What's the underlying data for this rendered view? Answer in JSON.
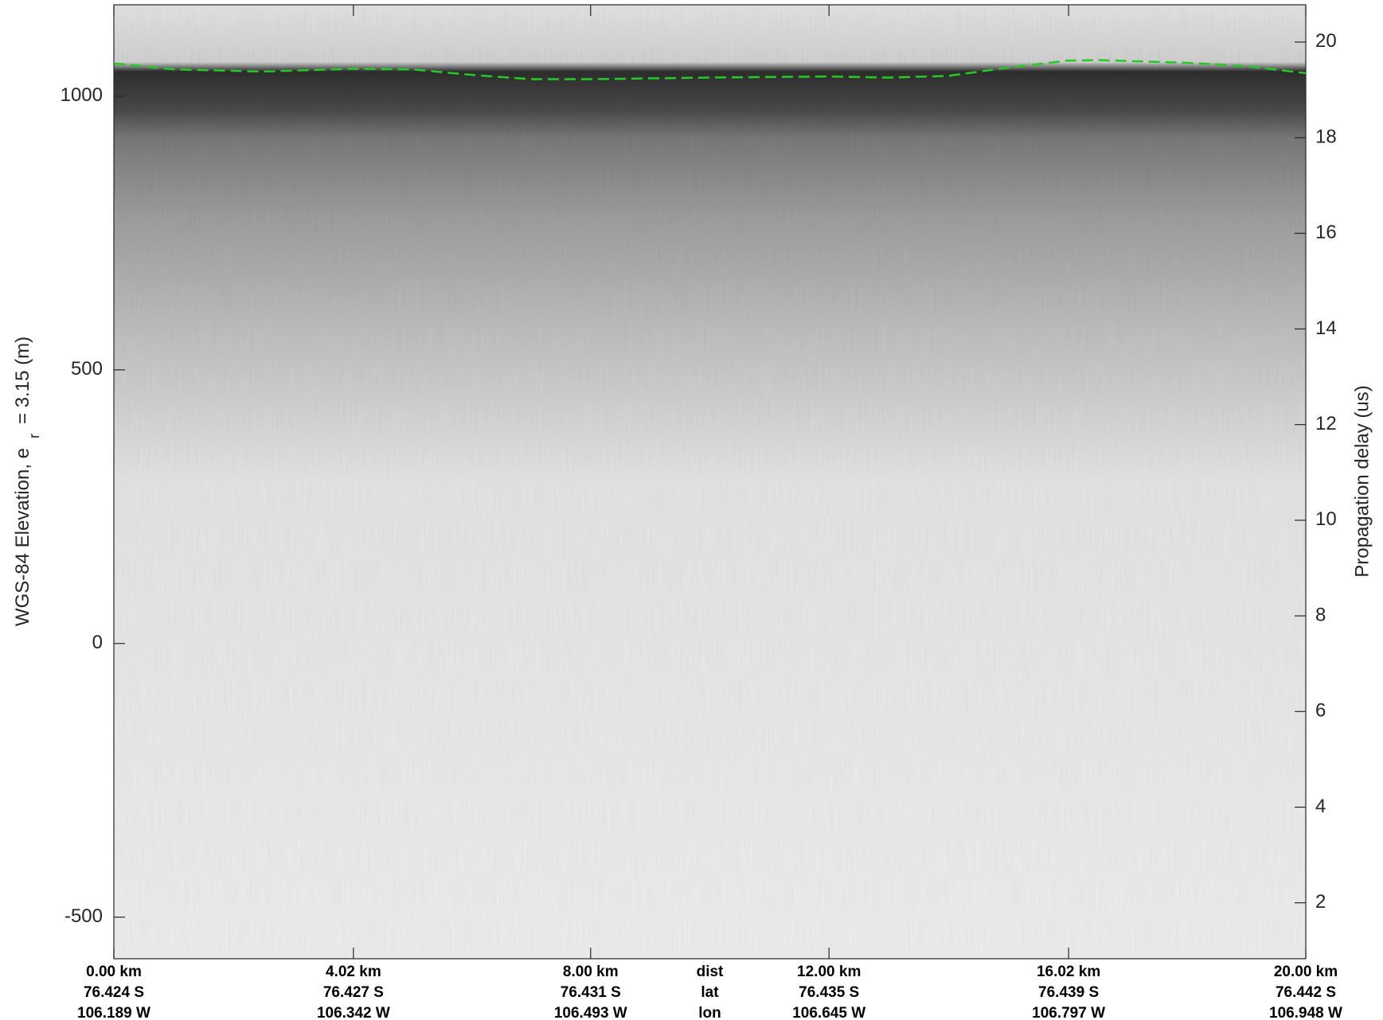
{
  "chart_data": {
    "type": "line",
    "ylabel": [
      "WGS-84 Elevation, e",
      "r",
      "= 3.15 (m)"
    ],
    "y2label": "Propagation delay (us)",
    "xlim": [
      0,
      20
    ],
    "ylim": [
      -576,
      1167
    ],
    "y2lim": [
      0.83,
      20.78
    ],
    "yticks": [
      1000,
      500,
      0,
      -500
    ],
    "y2ticks": [
      2,
      4,
      6,
      8,
      10,
      12,
      14,
      16,
      18,
      20
    ],
    "xticks": [
      {
        "value": 0,
        "label": "0.00 km"
      },
      {
        "value": 4.02,
        "label": "4.02 km"
      },
      {
        "value": 8.0,
        "label": "8.00 km"
      },
      {
        "value": 12.0,
        "label": "12.00 km"
      },
      {
        "value": 16.02,
        "label": "16.02 km"
      },
      {
        "value": 20.0,
        "label": "20.00 km"
      }
    ],
    "lat_labels": [
      "76.424 S",
      "76.427 S",
      "76.431 S",
      "76.435 S",
      "76.439 S",
      "76.442 S"
    ],
    "lon_labels": [
      "106.189 W",
      "106.342 W",
      "106.493 W",
      "106.645 W",
      "106.797 W",
      "106.948 W"
    ],
    "row_labels": [
      "dist",
      "lat",
      "lon"
    ],
    "series": [
      {
        "color": "#22cc22",
        "x": [
          0,
          1,
          2.5,
          4,
          5,
          6,
          7,
          8,
          10,
          12,
          13,
          14,
          15,
          16,
          16.5,
          18,
          19,
          20
        ],
        "values": [
          1060,
          1049,
          1045,
          1050,
          1049,
          1039,
          1031,
          1031,
          1034,
          1036,
          1034,
          1037,
          1052,
          1065,
          1066,
          1061,
          1055,
          1042
        ]
      }
    ]
  }
}
